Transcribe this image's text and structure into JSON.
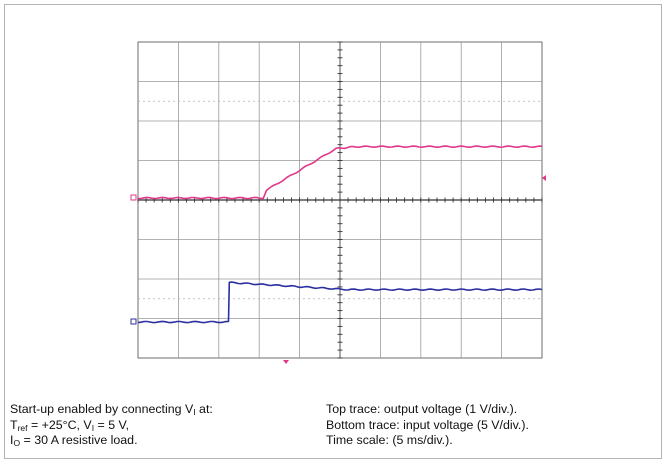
{
  "chart_data": {
    "type": "line",
    "title": "",
    "x_unit": "ms",
    "x_per_div": 5,
    "x_divisions": 10,
    "y_divisions": 8,
    "series": [
      {
        "name": "output voltage",
        "role": "top trace",
        "color": "#e0388a",
        "volts_per_div": 1,
        "x": [
          0,
          15.5,
          15.9,
          24.5,
          27,
          50
        ],
        "y": [
          0.0,
          0.0,
          0.2,
          1.25,
          1.3,
          1.3
        ]
      },
      {
        "name": "input voltage",
        "role": "bottom trace",
        "color": "#2b2fa0",
        "volts_per_div": 5,
        "x": [
          0,
          11.2,
          11.3,
          26,
          50
        ],
        "y": [
          0.0,
          0.0,
          5.0,
          4.1,
          4.1
        ]
      }
    ]
  },
  "caption": {
    "left": {
      "line1_pre": "Start-up enabled by connecting V",
      "line1_sub": "I",
      "line1_post": " at:",
      "line2_t": "T",
      "line2_t_sub": "ref",
      "line2_mid": " = +25°C, V",
      "line2_v_sub": "I",
      "line2_post": " = 5 V,",
      "line3_i": "I",
      "line3_i_sub": "O",
      "line3_post": " = 30 A resistive load."
    },
    "right": {
      "line1": "Top trace: output voltage (1 V/div.).",
      "line2": "Bottom trace: input voltage (5 V/div.).",
      "line3": "Time scale: (5 ms/div.)."
    }
  }
}
